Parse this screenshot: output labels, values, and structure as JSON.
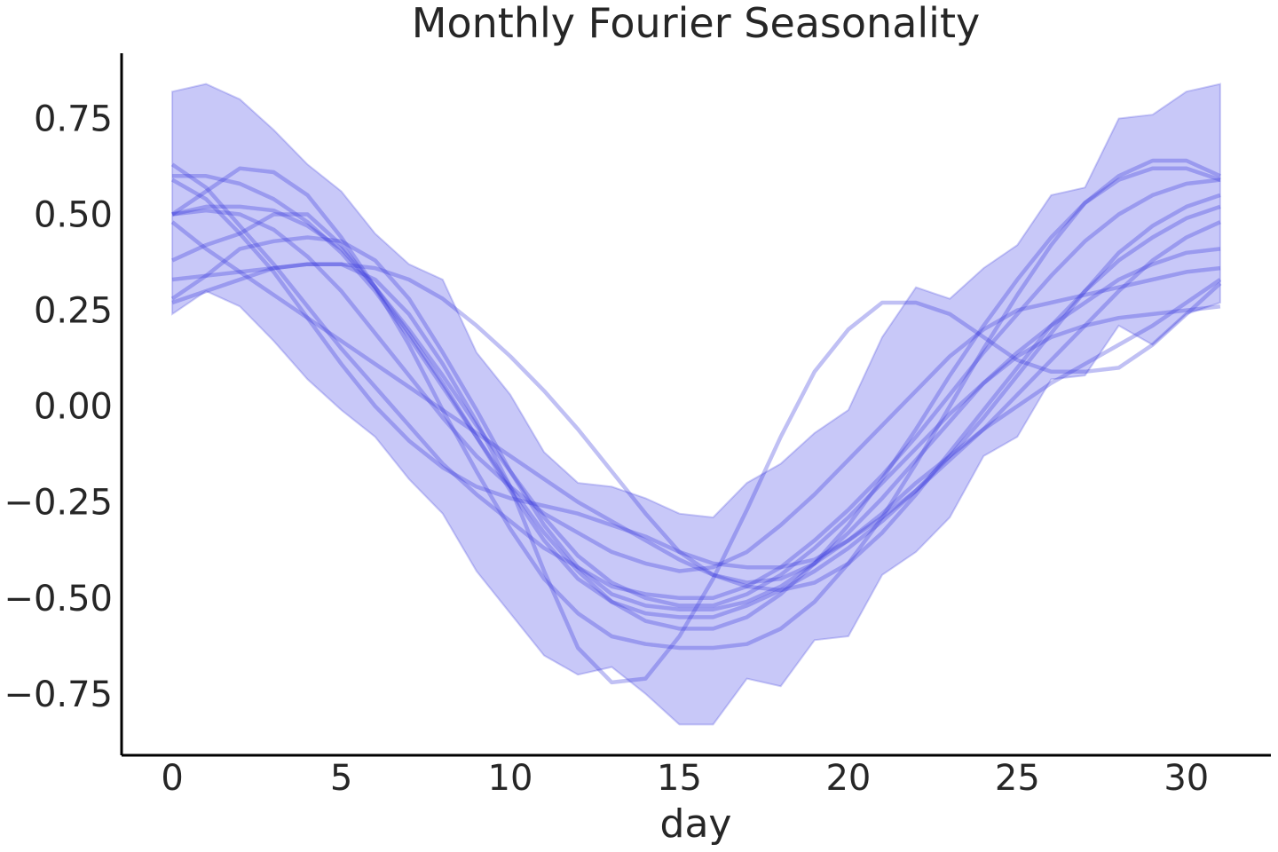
{
  "chart_data": {
    "type": "line",
    "title": "Monthly Fourier Seasonality",
    "xlabel": "day",
    "ylabel": "",
    "xlim": [
      -1.5,
      32.5
    ],
    "ylim": [
      -0.91,
      0.92
    ],
    "x_ticks": [
      0,
      5,
      10,
      15,
      20,
      25,
      30
    ],
    "y_ticks": [
      0.75,
      0.5,
      0.25,
      0.0,
      -0.25,
      -0.5,
      -0.75
    ],
    "x_tick_labels": [
      "0",
      "5",
      "10",
      "15",
      "20",
      "25",
      "30"
    ],
    "y_tick_labels": [
      "0.75",
      "0.50",
      "0.25",
      "0.00",
      "−0.25",
      "−0.50",
      "−0.75"
    ],
    "grid": false,
    "line_color": "#3c3cdc",
    "band_color": "#c8c8f8",
    "x": [
      0,
      1,
      2,
      3,
      4,
      5,
      6,
      7,
      8,
      9,
      10,
      11,
      12,
      13,
      14,
      15,
      16,
      17,
      18,
      19,
      20,
      21,
      22,
      23,
      24,
      25,
      26,
      27,
      28,
      29,
      30,
      31
    ],
    "band": {
      "upper": [
        0.82,
        0.84,
        0.8,
        0.72,
        0.63,
        0.56,
        0.45,
        0.37,
        0.33,
        0.14,
        0.03,
        -0.12,
        -0.2,
        -0.21,
        -0.24,
        -0.28,
        -0.29,
        -0.2,
        -0.15,
        -0.07,
        -0.01,
        0.18,
        0.31,
        0.28,
        0.36,
        0.42,
        0.55,
        0.57,
        0.75,
        0.76,
        0.82,
        0.84
      ],
      "lower": [
        0.24,
        0.3,
        0.26,
        0.17,
        0.07,
        -0.01,
        -0.08,
        -0.19,
        -0.28,
        -0.43,
        -0.54,
        -0.65,
        -0.7,
        -0.68,
        -0.75,
        -0.83,
        -0.83,
        -0.71,
        -0.73,
        -0.61,
        -0.6,
        -0.44,
        -0.38,
        -0.29,
        -0.13,
        -0.08,
        0.07,
        0.08,
        0.21,
        0.16,
        0.24,
        0.27
      ]
    },
    "series": [
      {
        "values": [
          0.63,
          0.57,
          0.47,
          0.37,
          0.26,
          0.15,
          0.05,
          -0.05,
          -0.15,
          -0.23,
          -0.3,
          -0.37,
          -0.42,
          -0.47,
          -0.49,
          -0.5,
          -0.5,
          -0.47,
          -0.42,
          -0.35,
          -0.27,
          -0.18,
          -0.08,
          0.03,
          0.14,
          0.24,
          0.34,
          0.43,
          0.5,
          0.55,
          0.58,
          0.59
        ]
      },
      {
        "values": [
          0.6,
          0.6,
          0.58,
          0.54,
          0.48,
          0.4,
          0.3,
          0.18,
          0.05,
          -0.08,
          -0.21,
          -0.33,
          -0.43,
          -0.51,
          -0.56,
          -0.58,
          -0.58,
          -0.55,
          -0.49,
          -0.41,
          -0.31,
          -0.19,
          -0.06,
          0.08,
          0.21,
          0.33,
          0.44,
          0.53,
          0.59,
          0.62,
          0.62,
          0.59
        ]
      },
      {
        "values": [
          0.5,
          0.56,
          0.62,
          0.61,
          0.55,
          0.44,
          0.31,
          0.16,
          -0.01,
          -0.17,
          -0.32,
          -0.45,
          -0.54,
          -0.6,
          -0.62,
          -0.63,
          -0.63,
          -0.62,
          -0.58,
          -0.51,
          -0.41,
          -0.29,
          -0.15,
          0.0,
          0.15,
          0.29,
          0.42,
          0.53,
          0.6,
          0.64,
          0.64,
          0.6
        ]
      },
      {
        "values": [
          0.48,
          0.41,
          0.35,
          0.29,
          0.23,
          0.17,
          0.11,
          0.05,
          -0.01,
          -0.07,
          -0.13,
          -0.19,
          -0.25,
          -0.3,
          -0.35,
          -0.4,
          -0.44,
          -0.47,
          -0.48,
          -0.46,
          -0.41,
          -0.33,
          -0.23,
          -0.12,
          -0.01,
          0.1,
          0.21,
          0.3,
          0.38,
          0.44,
          0.49,
          0.52
        ]
      },
      {
        "values": [
          0.38,
          0.42,
          0.45,
          0.5,
          0.5,
          0.42,
          0.31,
          0.19,
          0.06,
          -0.08,
          -0.22,
          -0.35,
          -0.45,
          -0.51,
          -0.54,
          -0.55,
          -0.55,
          -0.52,
          -0.48,
          -0.43,
          -0.37,
          -0.3,
          -0.22,
          -0.13,
          -0.03,
          0.08,
          0.19,
          0.3,
          0.4,
          0.47,
          0.52,
          0.55
        ]
      },
      {
        "values": [
          0.28,
          0.34,
          0.41,
          0.43,
          0.44,
          0.43,
          0.38,
          0.28,
          0.14,
          -0.01,
          -0.17,
          -0.31,
          -0.42,
          -0.49,
          -0.52,
          -0.53,
          -0.53,
          -0.51,
          -0.47,
          -0.41,
          -0.33,
          -0.24,
          -0.14,
          -0.04,
          0.06,
          0.14,
          0.21,
          0.27,
          0.33,
          0.37,
          0.4,
          0.41
        ]
      },
      {
        "values": [
          0.33,
          0.34,
          0.35,
          0.36,
          0.37,
          0.37,
          0.36,
          0.33,
          0.28,
          0.21,
          0.13,
          0.04,
          -0.06,
          -0.17,
          -0.28,
          -0.38,
          -0.44,
          -0.46,
          -0.45,
          -0.41,
          -0.35,
          -0.28,
          -0.2,
          -0.13,
          -0.06,
          0.0,
          0.06,
          0.11,
          0.16,
          0.21,
          0.27,
          0.33
        ]
      },
      {
        "values": [
          0.59,
          0.54,
          0.45,
          0.35,
          0.23,
          0.11,
          0.0,
          -0.09,
          -0.16,
          -0.21,
          -0.24,
          -0.26,
          -0.28,
          -0.31,
          -0.34,
          -0.38,
          -0.41,
          -0.42,
          -0.42,
          -0.4,
          -0.35,
          -0.29,
          -0.22,
          -0.14,
          -0.06,
          0.03,
          0.12,
          0.21,
          0.3,
          0.38,
          0.44,
          0.48
        ]
      },
      {
        "values": [
          0.5,
          0.52,
          0.52,
          0.51,
          0.47,
          0.41,
          0.31,
          0.2,
          0.08,
          -0.05,
          -0.17,
          -0.29,
          -0.39,
          -0.46,
          -0.5,
          -0.52,
          -0.52,
          -0.49,
          -0.44,
          -0.37,
          -0.29,
          -0.2,
          -0.11,
          -0.02,
          0.06,
          0.13,
          0.18,
          0.21,
          0.23,
          0.24,
          0.25,
          0.26
        ]
      },
      {
        "values": [
          0.27,
          0.3,
          0.33,
          0.36,
          0.37,
          0.37,
          0.33,
          0.24,
          0.11,
          -0.04,
          -0.21,
          -0.43,
          -0.63,
          -0.72,
          -0.71,
          -0.6,
          -0.45,
          -0.27,
          -0.08,
          0.09,
          0.2,
          0.27,
          0.27,
          0.24,
          0.18,
          0.12,
          0.09,
          0.09,
          0.1,
          0.16,
          0.24,
          0.32
        ]
      },
      {
        "values": [
          0.5,
          0.51,
          0.5,
          0.46,
          0.39,
          0.3,
          0.19,
          0.08,
          -0.03,
          -0.13,
          -0.21,
          -0.28,
          -0.33,
          -0.38,
          -0.41,
          -0.43,
          -0.42,
          -0.38,
          -0.31,
          -0.23,
          -0.14,
          -0.05,
          0.04,
          0.13,
          0.2,
          0.25,
          0.27,
          0.29,
          0.31,
          0.33,
          0.35,
          0.36
        ]
      }
    ]
  }
}
